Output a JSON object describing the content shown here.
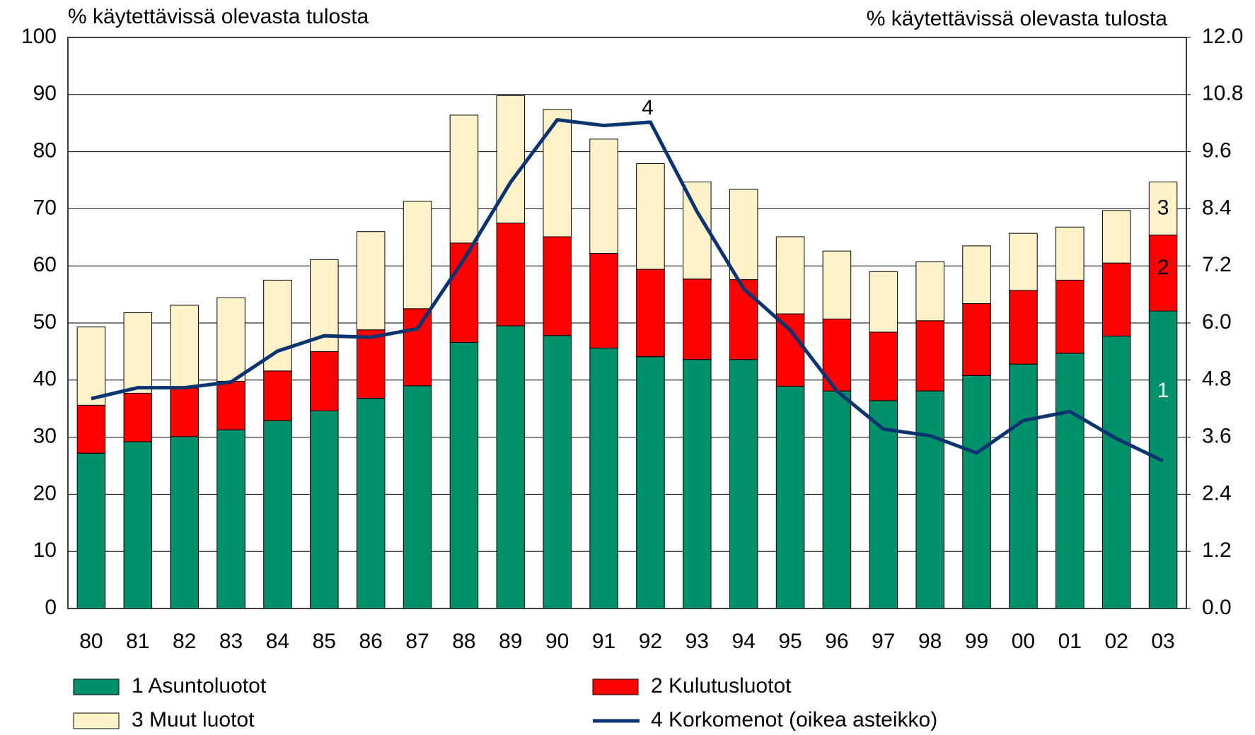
{
  "chart_data": {
    "type": "stacked-bar-line",
    "y_label": "% käytettävissä olevasta tulosta",
    "y2_label": "% käytettävissä olevasta tulosta",
    "categories": [
      "80",
      "81",
      "82",
      "83",
      "84",
      "85",
      "86",
      "87",
      "88",
      "89",
      "90",
      "91",
      "92",
      "93",
      "94",
      "95",
      "96",
      "97",
      "98",
      "99",
      "00",
      "01",
      "02",
      "03"
    ],
    "series": [
      {
        "name": "1  Asuntoluotot",
        "color": "#00906a",
        "values": [
          27.2,
          29.2,
          30.1,
          31.3,
          32.9,
          34.6,
          36.8,
          39.0,
          46.6,
          49.5,
          47.8,
          45.6,
          44.1,
          43.6,
          43.6,
          38.9,
          38.1,
          36.4,
          38.1,
          40.8,
          42.8,
          44.7,
          47.7,
          52.1
        ]
      },
      {
        "name": "2  Kulutusluotot",
        "color": "#ff0000",
        "values": [
          8.4,
          8.5,
          8.5,
          8.5,
          8.7,
          10.4,
          12.0,
          13.5,
          17.4,
          18.0,
          17.3,
          16.6,
          15.3,
          14.1,
          14.0,
          12.7,
          12.6,
          12.0,
          12.3,
          12.6,
          12.9,
          12.8,
          12.8,
          13.3
        ]
      },
      {
        "name": "3  Muut luotot",
        "color": "#fff2c8",
        "values": [
          13.7,
          14.1,
          14.5,
          14.6,
          15.9,
          16.1,
          17.2,
          18.8,
          22.4,
          22.3,
          22.3,
          20.0,
          18.5,
          17.0,
          15.8,
          13.5,
          11.9,
          10.6,
          10.3,
          10.1,
          10.0,
          9.3,
          9.2,
          9.3
        ]
      },
      {
        "name": "4  Korkomenot (oikea asteikko)",
        "color": "#0a3470",
        "axis": "y2",
        "values": [
          4.41,
          4.64,
          4.64,
          4.76,
          5.41,
          5.73,
          5.7,
          5.88,
          7.34,
          8.96,
          10.27,
          10.15,
          10.22,
          8.34,
          6.72,
          5.85,
          4.57,
          3.77,
          3.63,
          3.27,
          3.95,
          4.14,
          3.57,
          3.1
        ]
      }
    ],
    "annotations": [
      "1",
      "2",
      "3",
      "4"
    ],
    "ylim": [
      0,
      100
    ],
    "yticks": [
      0,
      10,
      20,
      30,
      40,
      50,
      60,
      70,
      80,
      90,
      100
    ],
    "y2lim": [
      0,
      12
    ],
    "y2ticks": [
      {
        "value": 0,
        "label": "0.0"
      },
      1.2,
      2.4,
      3.6,
      4.8,
      {
        "value": 6,
        "label": "6.0"
      },
      7.2,
      8.4,
      9.6,
      10.8,
      {
        "value": 12,
        "label": "12.0"
      }
    ],
    "grid": true
  }
}
